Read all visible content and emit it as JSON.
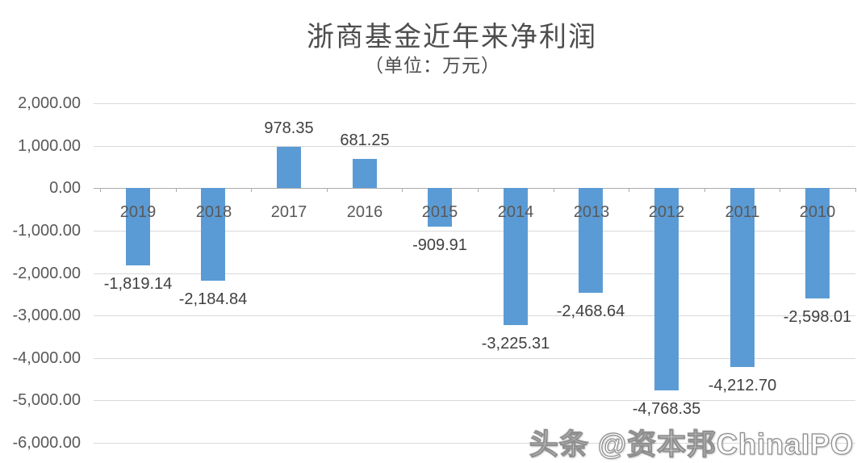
{
  "title": "浙商基金近年来净利润",
  "subtitle": "（单位：万元）",
  "watermark": "头条 @资本邦ChinaIPO",
  "chart_data": {
    "type": "bar",
    "title": "浙商基金近年来净利润",
    "subtitle": "（单位：万元）",
    "xlabel": "",
    "ylabel": "",
    "categories": [
      "2019",
      "2018",
      "2017",
      "2016",
      "2015",
      "2014",
      "2013",
      "2012",
      "2011",
      "2010"
    ],
    "values": [
      -1819.14,
      -2184.84,
      978.35,
      681.25,
      -909.91,
      -3225.31,
      -2468.64,
      -4768.35,
      -4212.7,
      -2598.01
    ],
    "data_labels": [
      "-1,819.14",
      "-2,184.84",
      "978.35",
      "681.25",
      "-909.91",
      "-3,225.31",
      "-2,468.64",
      "-4,768.35",
      "-4,212.70",
      "-2,598.01"
    ],
    "y_tick_values": [
      2000,
      1000,
      0,
      -1000,
      -2000,
      -3000,
      -4000,
      -5000,
      -6000
    ],
    "y_tick_labels": [
      "2,000.00",
      "1,000.00",
      "0.00",
      "-1,000.00",
      "-2,000.00",
      "-3,000.00",
      "-4,000.00",
      "-5,000.00",
      "-6,000.00"
    ],
    "ylim": [
      -6000,
      2000
    ],
    "grid": true,
    "legend": "none",
    "colors": {
      "bar": "#5B9BD5",
      "gridline": "#D9D9D9",
      "axis_line": "#ABABAB",
      "data_label_text": "#404040",
      "tick_label_text": "#595959",
      "title_text": "#4d4d4d",
      "background": "#ffffff"
    }
  }
}
